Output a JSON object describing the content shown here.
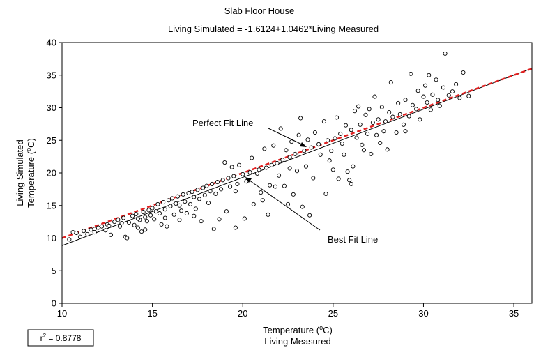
{
  "chart_data": {
    "type": "scatter",
    "title": "Slab Floor House",
    "subtitle": "Living Simulated = -1.6124+1.0462*Living Measured",
    "xlabel": {
      "prefix": "Temperature (",
      "sup": "o",
      "suffix": "C)",
      "line2": "Living Measured"
    },
    "ylabel": {
      "line1": "Living Simulated",
      "prefix": "Temperature (",
      "sup": "o",
      "suffix": "C)"
    },
    "xlim": [
      10,
      36
    ],
    "ylim": [
      0,
      40
    ],
    "x_ticks": [
      10,
      15,
      20,
      25,
      30,
      35
    ],
    "y_ticks": [
      0,
      5,
      10,
      15,
      20,
      25,
      30,
      35,
      40
    ],
    "grid": false,
    "best_fit": {
      "intercept": -1.6124,
      "slope": 1.0462,
      "label": "Best Fit Line",
      "color": "#000000"
    },
    "perfect_fit": {
      "intercept": 0,
      "slope": 1,
      "label": "Perfect Fit Line",
      "color": "#e02020"
    },
    "r_squared": {
      "prefix": "r",
      "sup": "2",
      "text": " = 0.8778"
    },
    "points": [
      [
        10.4,
        9.8
      ],
      [
        10.6,
        10.9
      ],
      [
        10.8,
        10.8
      ],
      [
        11.0,
        10.2
      ],
      [
        11.2,
        11.1
      ],
      [
        11.4,
        10.6
      ],
      [
        11.6,
        11.3
      ],
      [
        11.8,
        11.4
      ],
      [
        12.0,
        11.6
      ],
      [
        12.2,
        11.8
      ],
      [
        12.4,
        11.2
      ],
      [
        12.5,
        12.1
      ],
      [
        12.7,
        10.5
      ],
      [
        12.9,
        12.5
      ],
      [
        13.1,
        12.8
      ],
      [
        13.2,
        11.8
      ],
      [
        13.4,
        13.1
      ],
      [
        13.5,
        10.2
      ],
      [
        13.6,
        10.0
      ],
      [
        13.7,
        12.4
      ],
      [
        13.9,
        13.4
      ],
      [
        14.0,
        12.0
      ],
      [
        14.1,
        13.7
      ],
      [
        14.2,
        11.6
      ],
      [
        14.3,
        12.8
      ],
      [
        14.4,
        11.0
      ],
      [
        14.5,
        14.0
      ],
      [
        14.6,
        13.2
      ],
      [
        14.7,
        12.6
      ],
      [
        14.8,
        14.3
      ],
      [
        14.9,
        13.5
      ],
      [
        15.0,
        14.6
      ],
      [
        15.1,
        12.9
      ],
      [
        15.2,
        14.1
      ],
      [
        15.3,
        15.2
      ],
      [
        15.4,
        13.8
      ],
      [
        15.5,
        12.1
      ],
      [
        15.6,
        15.5
      ],
      [
        15.7,
        14.4
      ],
      [
        15.8,
        11.8
      ],
      [
        15.9,
        15.8
      ],
      [
        16.0,
        14.9
      ],
      [
        16.1,
        16.1
      ],
      [
        16.2,
        13.6
      ],
      [
        16.3,
        15.3
      ],
      [
        16.4,
        16.4
      ],
      [
        16.5,
        15.0
      ],
      [
        16.6,
        14.2
      ],
      [
        16.7,
        16.7
      ],
      [
        16.8,
        15.6
      ],
      [
        16.9,
        13.8
      ],
      [
        17.0,
        16.9
      ],
      [
        17.1,
        15.2
      ],
      [
        17.2,
        17.1
      ],
      [
        17.3,
        16.3
      ],
      [
        17.4,
        14.5
      ],
      [
        17.5,
        17.4
      ],
      [
        17.6,
        16.0
      ],
      [
        17.7,
        12.6
      ],
      [
        17.8,
        17.7
      ],
      [
        17.9,
        16.6
      ],
      [
        18.0,
        18.0
      ],
      [
        18.1,
        15.4
      ],
      [
        18.2,
        17.2
      ],
      [
        18.3,
        18.3
      ],
      [
        18.4,
        11.4
      ],
      [
        18.5,
        16.8
      ],
      [
        18.6,
        18.6
      ],
      [
        18.7,
        12.9
      ],
      [
        18.8,
        17.5
      ],
      [
        18.9,
        18.9
      ],
      [
        19.0,
        21.6
      ],
      [
        19.1,
        14.1
      ],
      [
        19.2,
        19.2
      ],
      [
        19.3,
        17.9
      ],
      [
        19.4,
        20.9
      ],
      [
        19.5,
        19.5
      ],
      [
        19.6,
        11.6
      ],
      [
        19.7,
        18.3
      ],
      [
        19.8,
        21.2
      ],
      [
        20.0,
        19.8
      ],
      [
        20.1,
        13.0
      ],
      [
        20.2,
        18.7
      ],
      [
        20.4,
        20.1
      ],
      [
        20.5,
        22.3
      ],
      [
        20.6,
        15.2
      ],
      [
        20.8,
        19.9
      ],
      [
        20.9,
        20.5
      ],
      [
        21.0,
        17.0
      ],
      [
        21.2,
        23.7
      ],
      [
        21.3,
        20.8
      ],
      [
        21.4,
        13.6
      ],
      [
        21.5,
        18.1
      ],
      [
        21.6,
        21.2
      ],
      [
        21.7,
        24.2
      ],
      [
        21.8,
        17.9
      ],
      [
        21.9,
        21.5
      ],
      [
        22.0,
        19.6
      ],
      [
        22.1,
        26.8
      ],
      [
        22.2,
        22.0
      ],
      [
        22.3,
        18.0
      ],
      [
        22.4,
        23.5
      ],
      [
        22.5,
        15.2
      ],
      [
        22.6,
        22.4
      ],
      [
        22.7,
        24.8
      ],
      [
        22.8,
        16.7
      ],
      [
        22.9,
        22.9
      ],
      [
        23.0,
        20.3
      ],
      [
        23.1,
        25.8
      ],
      [
        23.2,
        28.4
      ],
      [
        23.3,
        14.8
      ],
      [
        23.4,
        23.4
      ],
      [
        23.5,
        21.0
      ],
      [
        23.6,
        25.1
      ],
      [
        23.7,
        13.5
      ],
      [
        23.8,
        23.9
      ],
      [
        23.9,
        19.2
      ],
      [
        24.0,
        26.2
      ],
      [
        24.2,
        24.4
      ],
      [
        24.3,
        22.8
      ],
      [
        24.5,
        27.9
      ],
      [
        24.6,
        16.8
      ],
      [
        24.7,
        25.0
      ],
      [
        24.9,
        23.4
      ],
      [
        25.0,
        20.5
      ],
      [
        25.1,
        25.3
      ],
      [
        25.2,
        28.5
      ],
      [
        25.3,
        19.1
      ],
      [
        25.4,
        26.0
      ],
      [
        25.5,
        24.5
      ],
      [
        25.6,
        22.8
      ],
      [
        25.7,
        27.3
      ],
      [
        25.8,
        20.2
      ],
      [
        25.9,
        18.9
      ],
      [
        26.0,
        26.6
      ],
      [
        26.1,
        21.0
      ],
      [
        26.2,
        29.5
      ],
      [
        26.3,
        25.4
      ],
      [
        26.4,
        30.2
      ],
      [
        26.5,
        27.4
      ],
      [
        26.6,
        24.3
      ],
      [
        26.7,
        23.5
      ],
      [
        26.8,
        28.9
      ],
      [
        26.9,
        26.0
      ],
      [
        27.0,
        29.8
      ],
      [
        27.1,
        22.9
      ],
      [
        27.2,
        27.7
      ],
      [
        27.3,
        31.7
      ],
      [
        27.4,
        25.8
      ],
      [
        27.5,
        28.2
      ],
      [
        27.6,
        24.6
      ],
      [
        27.7,
        30.1
      ],
      [
        27.8,
        26.4
      ],
      [
        27.9,
        27.9
      ],
      [
        28.0,
        23.6
      ],
      [
        28.1,
        29.3
      ],
      [
        28.2,
        33.9
      ],
      [
        28.3,
        28.6
      ],
      [
        28.5,
        26.2
      ],
      [
        28.6,
        30.7
      ],
      [
        28.7,
        29.0
      ],
      [
        28.9,
        27.4
      ],
      [
        29.0,
        31.2
      ],
      [
        29.2,
        28.7
      ],
      [
        29.3,
        35.2
      ],
      [
        29.4,
        30.4
      ],
      [
        29.6,
        29.8
      ],
      [
        29.7,
        32.6
      ],
      [
        29.8,
        28.2
      ],
      [
        30.0,
        31.7
      ],
      [
        30.1,
        33.4
      ],
      [
        30.2,
        30.8
      ],
      [
        30.3,
        35.0
      ],
      [
        30.4,
        29.7
      ],
      [
        30.5,
        32.0
      ],
      [
        30.7,
        34.3
      ],
      [
        30.8,
        31.2
      ],
      [
        30.9,
        30.3
      ],
      [
        31.1,
        33.1
      ],
      [
        31.2,
        38.3
      ],
      [
        31.4,
        31.9
      ],
      [
        31.6,
        32.5
      ],
      [
        31.8,
        33.6
      ],
      [
        32.0,
        31.5
      ],
      [
        32.2,
        35.4
      ],
      [
        32.5,
        31.8
      ],
      [
        12.6,
        11.9
      ],
      [
        13.3,
        12.3
      ],
      [
        14.6,
        11.3
      ],
      [
        15.7,
        13.1
      ],
      [
        16.5,
        12.8
      ],
      [
        17.3,
        13.4
      ],
      [
        19.6,
        17.2
      ],
      [
        21.1,
        15.8
      ],
      [
        22.6,
        20.7
      ],
      [
        24.8,
        21.9
      ],
      [
        26.0,
        18.3
      ],
      [
        29.0,
        26.4
      ],
      [
        11.8,
        10.9
      ],
      [
        14.2,
        13.0
      ]
    ]
  }
}
